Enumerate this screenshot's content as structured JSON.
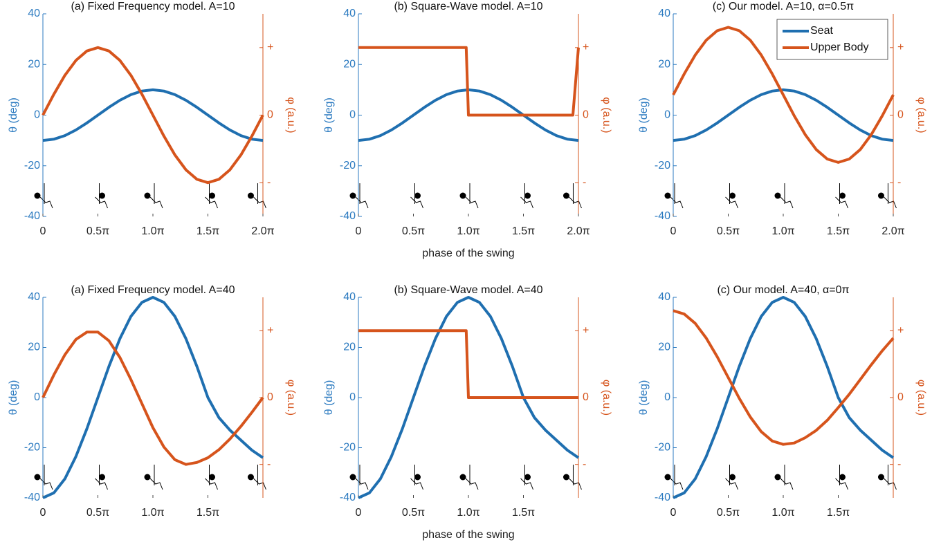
{
  "chart_data": [
    {
      "type": "line",
      "title": "(a) Fixed Frequency model. A=10",
      "ylabel": "θ (deg)",
      "y2label": "φ (a.u.)",
      "x": [
        0,
        0.1,
        0.2,
        0.3,
        0.4,
        0.5,
        0.6,
        0.7,
        0.8,
        0.9,
        1.0,
        1.1,
        1.2,
        1.3,
        1.4,
        1.5,
        1.6,
        1.7,
        1.8,
        1.9,
        2.0
      ],
      "xlim": [
        0,
        2
      ],
      "xticks": [
        0,
        {
          "value": 0.5,
          "label": "0.5π"
        },
        {
          "value": 1.0,
          "label": "1.0π"
        },
        {
          "value": 1.5,
          "label": "1.5π"
        },
        {
          "value": 2.0,
          "label": "2.0π"
        }
      ],
      "ylim": [
        -40,
        40
      ],
      "yticks": [
        -40,
        -20,
        0,
        20,
        40
      ],
      "y2lim": [
        -1.5,
        1.5
      ],
      "y2ticks": [
        {
          "value": -1,
          "label": "-"
        },
        0,
        {
          "value": 1,
          "label": "+"
        }
      ],
      "series": [
        {
          "color": "#1f6fb0",
          "values": [
            -10,
            -9.51,
            -8.09,
            -5.88,
            -3.09,
            0,
            3.09,
            5.88,
            8.09,
            9.51,
            10,
            9.51,
            8.09,
            5.88,
            3.09,
            0,
            -3.09,
            -5.88,
            -8.09,
            -9.51,
            -10
          ]
        },
        {
          "color": "#d6541c",
          "axis": "y2",
          "values": [
            0,
            0.31,
            0.59,
            0.81,
            0.95,
            1,
            0.95,
            0.81,
            0.59,
            0.31,
            0,
            -0.31,
            -0.59,
            -0.81,
            -0.95,
            -1,
            -0.95,
            -0.81,
            -0.59,
            -0.31,
            0
          ]
        }
      ]
    },
    {
      "type": "line",
      "title": "(b) Square-Wave model. A=10",
      "xlabel": "phase of the swing",
      "ylabel": "θ (deg)",
      "y2label": "φ (a.u.)",
      "x": [
        0,
        0.1,
        0.2,
        0.3,
        0.4,
        0.5,
        0.6,
        0.7,
        0.8,
        0.9,
        1.0,
        1.1,
        1.2,
        1.3,
        1.4,
        1.5,
        1.6,
        1.7,
        1.8,
        1.9,
        2.0
      ],
      "xlim": [
        0,
        2
      ],
      "xticks": [
        0,
        {
          "value": 0.5,
          "label": "0.5π"
        },
        {
          "value": 1.0,
          "label": "1.0π"
        },
        {
          "value": 1.5,
          "label": "1.5π"
        },
        {
          "value": 2.0,
          "label": "2.0π"
        }
      ],
      "ylim": [
        -40,
        40
      ],
      "yticks": [
        -40,
        -20,
        0,
        20,
        40
      ],
      "y2lim": [
        -1.5,
        1.5
      ],
      "y2ticks": [
        {
          "value": -1,
          "label": "-"
        },
        0,
        {
          "value": 1,
          "label": "+"
        }
      ],
      "series": [
        {
          "color": "#1f6fb0",
          "values": [
            -10,
            -9.51,
            -8.09,
            -5.88,
            -3.09,
            0,
            3.09,
            5.88,
            8.09,
            9.51,
            10,
            9.51,
            8.09,
            5.88,
            3.09,
            0,
            -3.09,
            -5.88,
            -8.09,
            -9.51,
            -10
          ]
        },
        {
          "color": "#d6541c",
          "axis": "y2",
          "x": [
            0,
            0.98,
            1.0,
            1.95,
            2.0
          ],
          "values": [
            1,
            1,
            0,
            0,
            1
          ]
        }
      ]
    },
    {
      "type": "line",
      "title": "(c) Our model. A=10, α=0.5π",
      "ylabel": "θ (deg)",
      "y2label": "φ (a.u.)",
      "legend": "upper right",
      "x": [
        0,
        0.1,
        0.2,
        0.3,
        0.4,
        0.5,
        0.6,
        0.7,
        0.8,
        0.9,
        1.0,
        1.1,
        1.2,
        1.3,
        1.4,
        1.5,
        1.6,
        1.7,
        1.8,
        1.9,
        2.0
      ],
      "xlim": [
        0,
        2
      ],
      "xticks": [
        0,
        {
          "value": 0.5,
          "label": "0.5π"
        },
        {
          "value": 1.0,
          "label": "1.0π"
        },
        {
          "value": 1.5,
          "label": "1.5π"
        },
        {
          "value": 2.0,
          "label": "2.0π"
        }
      ],
      "ylim": [
        -40,
        40
      ],
      "yticks": [
        -40,
        -20,
        0,
        20,
        40
      ],
      "y2lim": [
        -1.5,
        1.5
      ],
      "y2ticks": [
        {
          "value": -1,
          "label": "-"
        },
        0,
        {
          "value": 1,
          "label": "+"
        }
      ],
      "series": [
        {
          "name": "Seat",
          "color": "#1f6fb0",
          "values": [
            -10,
            -9.51,
            -8.09,
            -5.88,
            -3.09,
            0,
            3.09,
            5.88,
            8.09,
            9.51,
            10,
            9.51,
            8.09,
            5.88,
            3.09,
            0,
            -3.09,
            -5.88,
            -8.09,
            -9.51,
            -10
          ]
        },
        {
          "name": "Upper Body",
          "color": "#d6541c",
          "axis": "y2",
          "values": [
            0.3,
            0.61,
            0.89,
            1.11,
            1.25,
            1.3,
            1.25,
            1.11,
            0.89,
            0.61,
            0.3,
            -0.01,
            -0.29,
            -0.51,
            -0.65,
            -0.7,
            -0.65,
            -0.51,
            -0.29,
            -0.01,
            0.3
          ]
        }
      ]
    },
    {
      "type": "line",
      "title": "(a) Fixed Frequency model. A=40",
      "ylabel": "θ (deg)",
      "y2label": "φ (a.u.)",
      "x": [
        0,
        0.1,
        0.2,
        0.3,
        0.4,
        0.5,
        0.6,
        0.7,
        0.8,
        0.9,
        1.0,
        1.1,
        1.2,
        1.3,
        1.4,
        1.5,
        1.6,
        1.7,
        1.8,
        1.9,
        2.0
      ],
      "xlim": [
        0,
        2
      ],
      "xticks": [
        0,
        {
          "value": 0.5,
          "label": "0.5π"
        },
        {
          "value": 1.0,
          "label": "1.0π"
        },
        {
          "value": 1.5,
          "label": "1.5π"
        }
      ],
      "ylim": [
        -40,
        40
      ],
      "yticks": [
        -40,
        -20,
        0,
        20,
        40
      ],
      "y2lim": [
        -1.5,
        1.5
      ],
      "y2ticks": [
        {
          "value": -1,
          "label": "-"
        },
        0,
        {
          "value": 1,
          "label": "+"
        }
      ],
      "series": [
        {
          "color": "#1f6fb0",
          "values": [
            -40,
            -38,
            -32.4,
            -23.5,
            -12.4,
            0,
            12.4,
            23.5,
            32.4,
            38,
            40,
            38,
            32.4,
            23.5,
            12.4,
            0,
            -8,
            -13,
            -17,
            -21,
            -24
          ]
        },
        {
          "color": "#d6541c",
          "axis": "y2",
          "values": [
            0,
            0.34,
            0.64,
            0.87,
            0.98,
            0.98,
            0.85,
            0.6,
            0.27,
            -0.09,
            -0.45,
            -0.74,
            -0.93,
            -1,
            -0.97,
            -0.9,
            -0.78,
            -0.62,
            -0.43,
            -0.22,
            0
          ]
        }
      ]
    },
    {
      "type": "line",
      "title": "(b) Square-Wave model. A=40",
      "xlabel": "phase of the swing",
      "ylabel": "θ (deg)",
      "y2label": "φ (a.u.)",
      "x": [
        0,
        0.1,
        0.2,
        0.3,
        0.4,
        0.5,
        0.6,
        0.7,
        0.8,
        0.9,
        1.0,
        1.1,
        1.2,
        1.3,
        1.4,
        1.5,
        1.6,
        1.7,
        1.8,
        1.9,
        2.0
      ],
      "xlim": [
        0,
        2
      ],
      "xticks": [
        0,
        {
          "value": 0.5,
          "label": "0.5π"
        },
        {
          "value": 1.0,
          "label": "1.0π"
        },
        {
          "value": 1.5,
          "label": "1.5π"
        }
      ],
      "ylim": [
        -40,
        40
      ],
      "yticks": [
        -40,
        -20,
        0,
        20,
        40
      ],
      "y2lim": [
        -1.5,
        1.5
      ],
      "y2ticks": [
        {
          "value": -1,
          "label": "-"
        },
        0,
        {
          "value": 1,
          "label": "+"
        }
      ],
      "series": [
        {
          "color": "#1f6fb0",
          "values": [
            -40,
            -38,
            -32.4,
            -23.5,
            -12.4,
            0,
            12.4,
            23.5,
            32.4,
            38,
            40,
            38,
            32.4,
            23.5,
            12.4,
            0,
            -8,
            -13,
            -17,
            -21,
            -24
          ]
        },
        {
          "color": "#d6541c",
          "axis": "y2",
          "x": [
            0,
            0.98,
            1.0,
            2.0
          ],
          "values": [
            1,
            1,
            0,
            0
          ]
        }
      ]
    },
    {
      "type": "line",
      "title": "(c) Our model. A=40, α=0π",
      "ylabel": "θ (deg)",
      "y2label": "φ (a.u.)",
      "x": [
        0,
        0.1,
        0.2,
        0.3,
        0.4,
        0.5,
        0.6,
        0.7,
        0.8,
        0.9,
        1.0,
        1.1,
        1.2,
        1.3,
        1.4,
        1.5,
        1.6,
        1.7,
        1.8,
        1.9,
        2.0
      ],
      "xlim": [
        0,
        2
      ],
      "xticks": [
        0,
        {
          "value": 0.5,
          "label": "0.5π"
        },
        {
          "value": 1.0,
          "label": "1.0π"
        },
        {
          "value": 1.5,
          "label": "1.5π"
        }
      ],
      "ylim": [
        -40,
        40
      ],
      "yticks": [
        -40,
        -20,
        0,
        20,
        40
      ],
      "y2lim": [
        -1.5,
        1.5
      ],
      "y2ticks": [
        {
          "value": -1,
          "label": "-"
        },
        0,
        {
          "value": 1,
          "label": "+"
        }
      ],
      "series": [
        {
          "color": "#1f6fb0",
          "values": [
            -40,
            -38,
            -32.4,
            -23.5,
            -12.4,
            0,
            12.4,
            23.5,
            32.4,
            38,
            40,
            38,
            32.4,
            23.5,
            12.4,
            0,
            -8,
            -13,
            -17,
            -21,
            -24
          ]
        },
        {
          "color": "#d6541c",
          "axis": "y2",
          "values": [
            1.3,
            1.25,
            1.11,
            0.89,
            0.61,
            0.3,
            -0.01,
            -0.29,
            -0.51,
            -0.65,
            -0.7,
            -0.68,
            -0.6,
            -0.49,
            -0.34,
            -0.15,
            0.05,
            0.27,
            0.49,
            0.7,
            0.89
          ]
        }
      ]
    }
  ]
}
